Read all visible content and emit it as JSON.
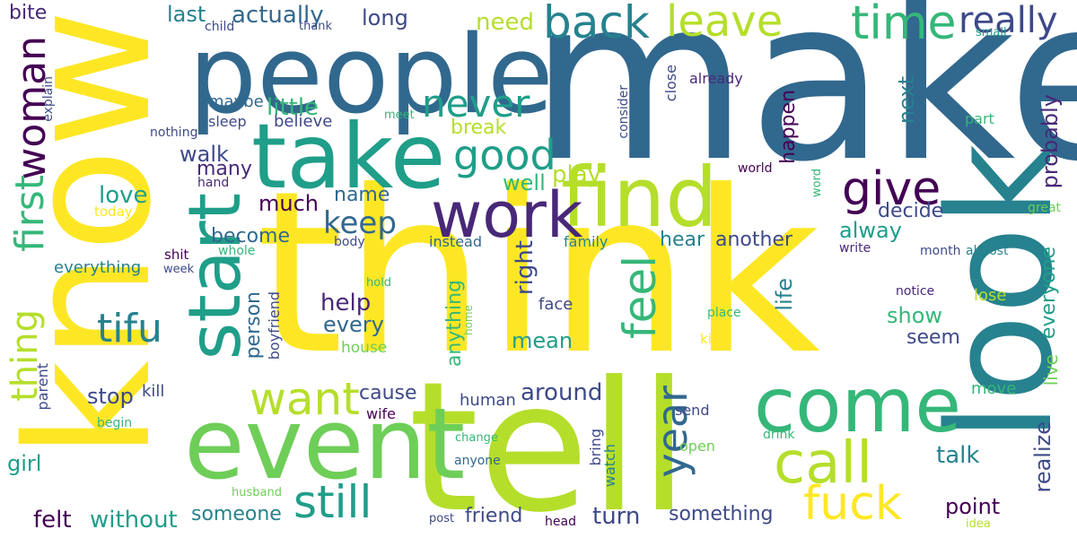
{
  "palette": {
    "background": "#ffffff",
    "yellow": "#fde725",
    "lime": "#b5de2b",
    "green": "#6ece58",
    "sea_green": "#35b779",
    "teal": "#1f9e89",
    "cyan_blue": "#26828e",
    "blue": "#31688e",
    "indigo": "#3e4989",
    "purple": "#482878",
    "dark_purple": "#440154"
  },
  "words": {
    "make": "make",
    "think": "think",
    "know": "know",
    "tell": "tell",
    "look": "look",
    "people": "people",
    "event": "event",
    "take": "take",
    "find": "find",
    "start": "start",
    "come": "come",
    "work": "work",
    "call": "call",
    "give": "give",
    "time": "time",
    "leave": "leave",
    "back": "back",
    "really": "really",
    "good": "good",
    "never": "never",
    "feel": "feel",
    "want": "want",
    "still": "still",
    "fuck": "fuck",
    "year": "year",
    "woman": "woman",
    "first": "first",
    "thing": "thing",
    "tifu": "tifu",
    "keep": "keep",
    "little": "little",
    "actually": "actually",
    "last": "last",
    "long": "long",
    "need": "need",
    "bite": "bite",
    "child": "child",
    "thank": "thank",
    "small": "small",
    "explain": "explain",
    "maybe": "maybe",
    "sleep": "sleep",
    "believe": "believe",
    "meet": "meet",
    "nothing": "nothing",
    "consider": "consider",
    "close": "close",
    "already": "already",
    "part": "part",
    "break": "break",
    "happen": "happen",
    "next": "next",
    "probably": "probably",
    "walk": "walk",
    "many": "many",
    "hand": "hand",
    "play": "play",
    "well": "well",
    "world": "world",
    "word": "word",
    "love": "love",
    "today": "today",
    "much": "much",
    "name": "name",
    "decide": "decide",
    "alway": "alway",
    "great": "great",
    "become": "become",
    "body": "body",
    "instead": "instead",
    "family": "family",
    "hear": "hear",
    "another": "another",
    "write": "write",
    "month": "month",
    "almost": "almost",
    "shit": "shit",
    "whole": "whole",
    "everything": "everything",
    "week": "week",
    "everyone": "everyone",
    "hold": "hold",
    "person": "person",
    "help": "help",
    "face": "face",
    "right": "right",
    "anything": "anything",
    "life": "life",
    "notice": "notice",
    "lose": "lose",
    "every": "every",
    "show": "show",
    "place": "place",
    "home": "home",
    "seem": "seem",
    "kind": "kind",
    "mean": "mean",
    "boyfriend": "boyfriend",
    "house": "house",
    "live": "live",
    "parent": "parent",
    "stop": "stop",
    "kill": "kill",
    "cause": "cause",
    "human": "human",
    "around": "around",
    "move": "move",
    "wife": "wife",
    "begin": "begin",
    "send": "send",
    "realize": "realize",
    "drink": "drink",
    "change": "change",
    "bring": "bring",
    "talk": "talk",
    "open": "open",
    "girl": "girl",
    "anyone": "anyone",
    "watch": "watch",
    "husband": "husband",
    "someone": "someone",
    "point": "point",
    "felt": "felt",
    "without": "without",
    "friend": "friend",
    "turn": "turn",
    "something": "something",
    "post": "post",
    "head": "head",
    "idea": "idea"
  }
}
